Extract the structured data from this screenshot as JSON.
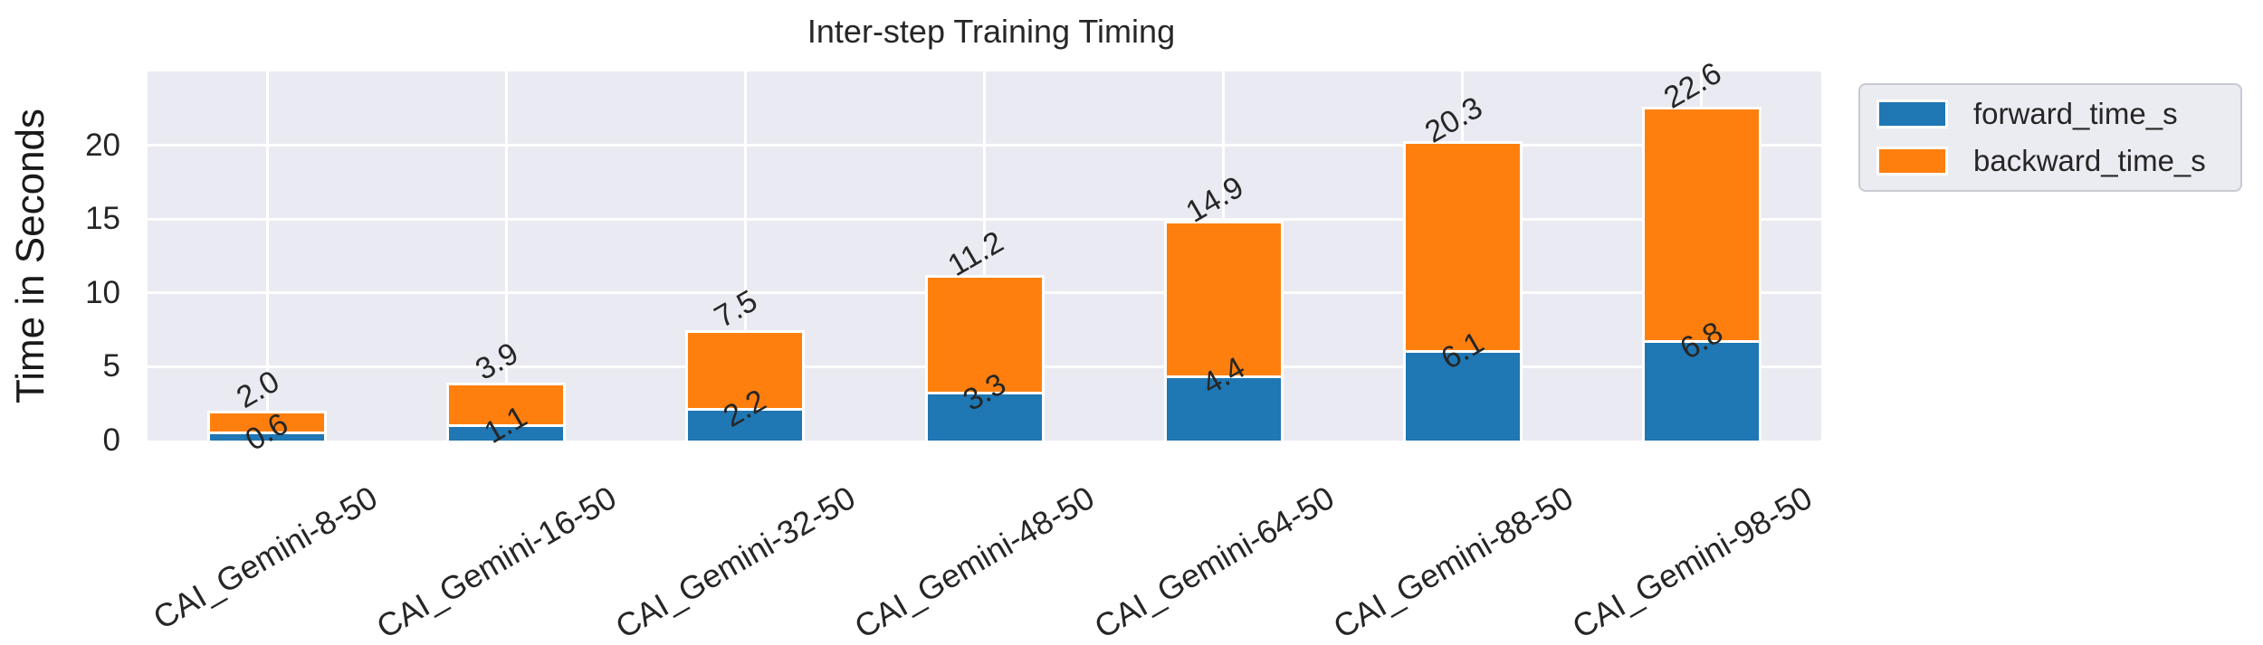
{
  "chart_data": {
    "type": "bar",
    "stacked": true,
    "title": "Inter-step Training Timing",
    "ylabel": "Time in Seconds",
    "xlabel": "",
    "categories": [
      "CAI_Gemini-8-50",
      "CAI_Gemini-16-50",
      "CAI_Gemini-32-50",
      "CAI_Gemini-48-50",
      "CAI_Gemini-64-50",
      "CAI_Gemini-88-50",
      "CAI_Gemini-98-50"
    ],
    "series": [
      {
        "name": "forward_time_s",
        "color": "#1f77b4",
        "values": [
          0.6,
          1.1,
          2.2,
          3.3,
          4.4,
          6.1,
          6.8
        ]
      },
      {
        "name": "backward_time_s",
        "color": "#ff7f0e",
        "values": [
          1.4,
          2.8,
          5.3,
          7.9,
          10.5,
          14.2,
          15.8
        ]
      }
    ],
    "stack_totals": [
      2.0,
      3.9,
      7.5,
      11.2,
      14.9,
      20.3,
      22.6
    ],
    "bar_labels": {
      "forward": [
        "0.6",
        "1.1",
        "2.2",
        "3.3",
        "4.4",
        "6.1",
        "6.8"
      ],
      "total": [
        "2.0",
        "3.9",
        "7.5",
        "11.2",
        "14.9",
        "20.3",
        "22.6"
      ]
    },
    "yticks": [
      0,
      5,
      10,
      15,
      20
    ],
    "ylim": [
      0,
      25
    ],
    "grid": true,
    "legend_position": "outside-top-right",
    "label_rotation_deg": 30
  },
  "legend": {
    "items": [
      {
        "label": "forward_time_s",
        "color": "#1f77b4"
      },
      {
        "label": "backward_time_s",
        "color": "#ff7f0e"
      }
    ]
  },
  "colors": {
    "plot_background": "#eaeaf2",
    "gridline": "#ffffff",
    "bar_edge": "#ffffff",
    "text": "#262626",
    "forward": "#1f77b4",
    "backward": "#ff7f0e"
  }
}
